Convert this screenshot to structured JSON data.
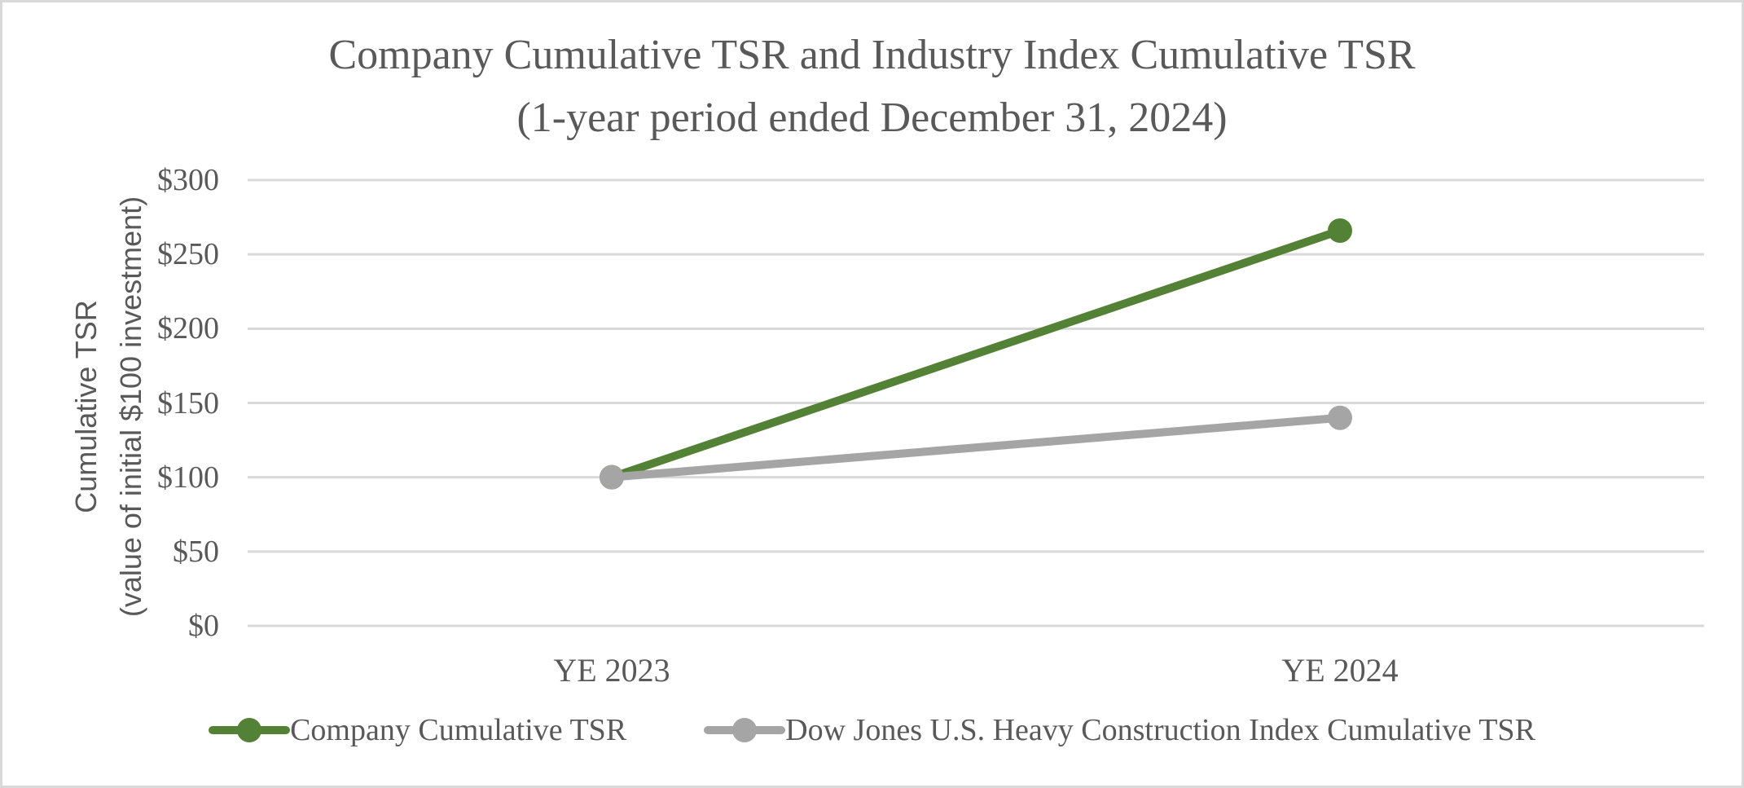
{
  "frame": {
    "background": "#ffffff",
    "border_color": "#d9d9d9",
    "text_color": "#595959"
  },
  "chart_data": {
    "type": "line",
    "title": "Company Cumulative TSR and Industry Index Cumulative TSR",
    "subtitle": "(1-year period ended December 31, 2024)",
    "y_axis_title_line1": "Cumulative TSR",
    "y_axis_title_line2": "(value of initial $100 investment)",
    "categories": [
      "YE 2023",
      "YE 2024"
    ],
    "series": [
      {
        "name": "Company Cumulative TSR",
        "values": [
          100,
          266
        ],
        "color": "#538135"
      },
      {
        "name": "Dow Jones U.S. Heavy Construction Index Cumulative TSR",
        "values": [
          100,
          140
        ],
        "color": "#a5a5a5"
      }
    ],
    "ylim": [
      0,
      300
    ],
    "y_tick_interval": 50,
    "y_ticks": [
      {
        "label": "$0",
        "value": 0
      },
      {
        "label": "$50",
        "value": 50
      },
      {
        "label": "$100",
        "value": 100
      },
      {
        "label": "$150",
        "value": 150
      },
      {
        "label": "$200",
        "value": 200
      },
      {
        "label": "$250",
        "value": 250
      },
      {
        "label": "$300",
        "value": 300
      }
    ],
    "grid": "horizontal-only",
    "gridline_color": "#d9d9d9",
    "legend_position": "bottom-center",
    "marker_style": "filled-circle"
  }
}
